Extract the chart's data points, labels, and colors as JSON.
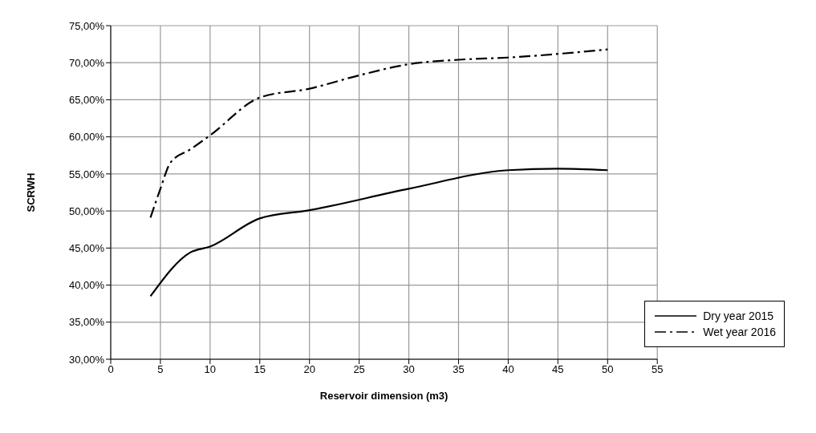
{
  "chart_data": {
    "type": "line",
    "xlabel": "Reservoir dimension (m3)",
    "ylabel": "SCRWH",
    "xlim": [
      0,
      55
    ],
    "xticks": [
      0,
      5,
      10,
      15,
      20,
      25,
      30,
      35,
      40,
      45,
      50,
      55
    ],
    "ylim": [
      30,
      75
    ],
    "yticks": [
      {
        "value": 30,
        "label": "30,00%"
      },
      {
        "value": 35,
        "label": "35,00%"
      },
      {
        "value": 40,
        "label": "40,00%"
      },
      {
        "value": 45,
        "label": "45,00%"
      },
      {
        "value": 50,
        "label": "50,00%"
      },
      {
        "value": 55,
        "label": "55,00%"
      },
      {
        "value": 60,
        "label": "60,00%"
      },
      {
        "value": 65,
        "label": "65,00%"
      },
      {
        "value": 70,
        "label": "70,00%"
      },
      {
        "value": 75,
        "label": "75,00%"
      }
    ],
    "grid": true,
    "legend": "bottom right",
    "marker": "none",
    "series": [
      {
        "name": "Dry year 2015",
        "color": "#000000",
        "line_style": "solid",
        "x": [
          4,
          8,
          10,
          15,
          20,
          30,
          40,
          45,
          50
        ],
        "values": [
          38.5,
          44.4,
          45.2,
          49.0,
          50.1,
          53.0,
          55.5,
          55.7,
          55.5
        ]
      },
      {
        "name": "Wet year 2016",
        "color": "#000000",
        "line_style": "dashed",
        "x": [
          4,
          5,
          6,
          8,
          10,
          15,
          20,
          25,
          30,
          35,
          40,
          50
        ],
        "values": [
          49.1,
          53,
          56.5,
          58.3,
          60.2,
          65.3,
          66.5,
          68.3,
          69.8,
          70.4,
          70.7,
          71.8
        ]
      }
    ]
  }
}
